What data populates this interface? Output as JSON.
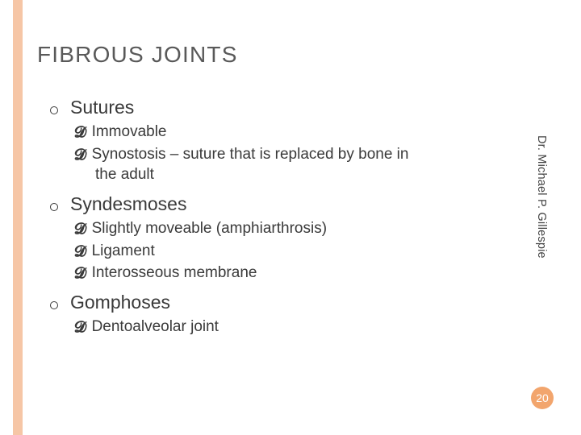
{
  "title": "FIBROUS JOINTS",
  "author": "Dr. Michael P. Gillespie",
  "pageNumber": "20",
  "colors": {
    "accentBar": "#f6c6a6",
    "accentCircle": "#f2a56d",
    "titleColor": "#595959",
    "bodyColor": "#3a3a3a"
  },
  "sections": [
    {
      "heading": "Sutures",
      "items": [
        {
          "text": "Immovable"
        },
        {
          "text": "Synostosis – suture that is replaced by bone in",
          "cont": "the adult"
        }
      ]
    },
    {
      "heading": "Syndesmoses",
      "items": [
        {
          "text": "Slightly moveable (amphiarthrosis)"
        },
        {
          "text": "Ligament"
        },
        {
          "text": "Interosseous membrane"
        }
      ]
    },
    {
      "heading": "Gomphoses",
      "items": [
        {
          "text": "Dentoalveolar joint"
        }
      ]
    }
  ]
}
